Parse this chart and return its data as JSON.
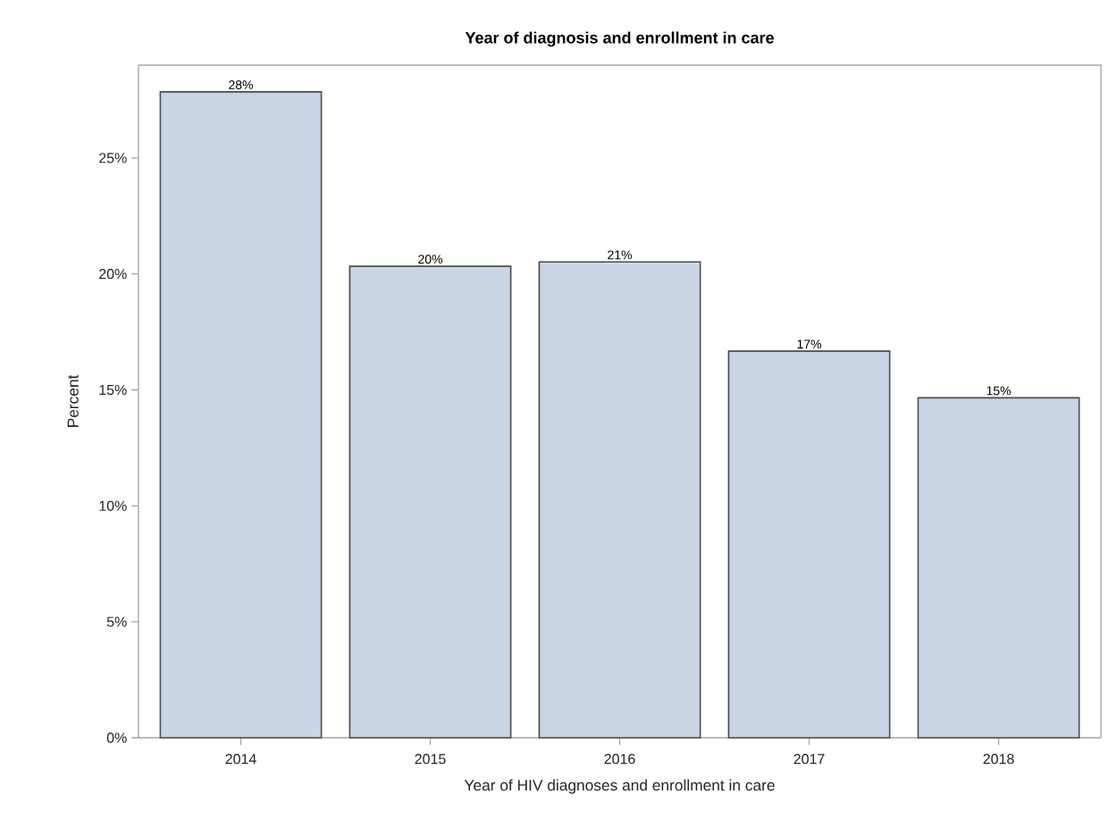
{
  "chart_data": {
    "type": "bar",
    "title": "Year of diagnosis and enrollment in care",
    "xlabel": "Year of HIV diagnoses and enrollment in care",
    "ylabel": "Percent",
    "categories": [
      "2014",
      "2015",
      "2016",
      "2017",
      "2018"
    ],
    "values": [
      27.85,
      20.33,
      20.52,
      16.67,
      14.66
    ],
    "value_labels": [
      "28%",
      "20%",
      "21%",
      "17%",
      "15%"
    ],
    "color": "#c9d5e5",
    "ylim": [
      0,
      29
    ],
    "yticks": [
      {
        "value": 0,
        "label": "0%"
      },
      {
        "value": 5,
        "label": "5%"
      },
      {
        "value": 10,
        "label": "10%"
      },
      {
        "value": 15,
        "label": "15%"
      },
      {
        "value": 20,
        "label": "20%"
      },
      {
        "value": 25,
        "label": "25%"
      }
    ]
  }
}
